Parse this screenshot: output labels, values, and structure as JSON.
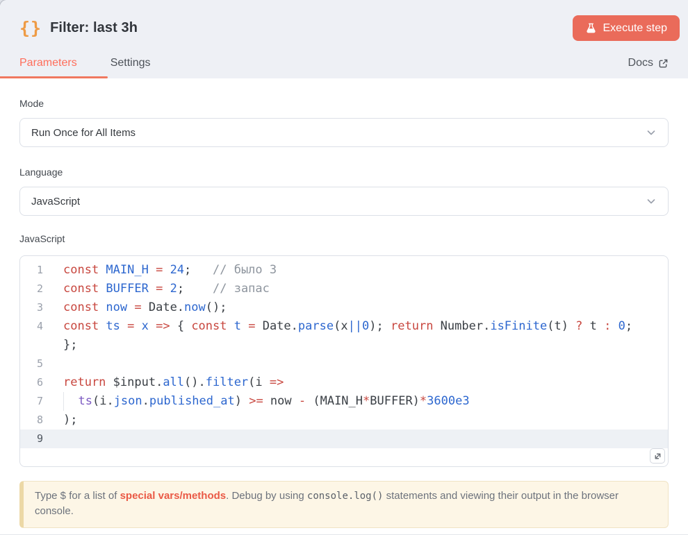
{
  "header": {
    "icon": "{}",
    "title": "Filter: last 3h",
    "execute_label": "Execute step"
  },
  "tabs": {
    "parameters": "Parameters",
    "settings": "Settings",
    "docs": "Docs"
  },
  "fields": {
    "mode": {
      "label": "Mode",
      "value": "Run Once for All Items"
    },
    "language": {
      "label": "Language",
      "value": "JavaScript"
    },
    "code_label": "JavaScript"
  },
  "colors": {
    "primary": "#ff6d5a",
    "execute_button": "#ea6b5a",
    "node_icon": "#ee9b45",
    "header_bg": "#eef0f5",
    "active_line_bg": "#eef1f5",
    "hint_bg": "#fdf6e6",
    "hint_border": "#ecd8a6",
    "token_keyword": "#c8473f",
    "token_variable": "#2d67cf",
    "token_function_call": "#7c5ac2",
    "token_comment": "#8e959e",
    "token_plain": "#3a3f45"
  },
  "editor": {
    "lines": [
      {
        "n": "1",
        "tokens": [
          [
            "kw",
            "const "
          ],
          [
            "def",
            "MAIN_H "
          ],
          [
            "kw",
            "= "
          ],
          [
            "num",
            "24"
          ],
          [
            "pl",
            ";   "
          ],
          [
            "cm",
            "// было 3"
          ]
        ]
      },
      {
        "n": "2",
        "tokens": [
          [
            "kw",
            "const "
          ],
          [
            "def",
            "BUFFER "
          ],
          [
            "kw",
            "= "
          ],
          [
            "num",
            "2"
          ],
          [
            "pl",
            ";    "
          ],
          [
            "cm",
            "// запас"
          ]
        ]
      },
      {
        "n": "3",
        "tokens": [
          [
            "kw",
            "const "
          ],
          [
            "def",
            "now "
          ],
          [
            "kw",
            "= "
          ],
          [
            "pl",
            "Date."
          ],
          [
            "prop",
            "now"
          ],
          [
            "pl",
            "();"
          ]
        ]
      },
      {
        "n": "4",
        "tokens": [
          [
            "kw",
            "const "
          ],
          [
            "def",
            "ts "
          ],
          [
            "kw",
            "= "
          ],
          [
            "def",
            "x "
          ],
          [
            "kw",
            "=> "
          ],
          [
            "pl",
            "{ "
          ],
          [
            "kw",
            "const "
          ],
          [
            "def",
            "t "
          ],
          [
            "kw",
            "= "
          ],
          [
            "pl",
            "Date."
          ],
          [
            "prop",
            "parse"
          ],
          [
            "pl",
            "(x"
          ],
          [
            "num",
            "||"
          ],
          [
            "num",
            "0"
          ],
          [
            "pl",
            "); "
          ],
          [
            "kw",
            "return "
          ],
          [
            "pl",
            "Number."
          ],
          [
            "prop",
            "isFinite"
          ],
          [
            "pl",
            "(t) "
          ],
          [
            "kw",
            "? "
          ],
          [
            "pl",
            "t "
          ],
          [
            "kw",
            ": "
          ],
          [
            "num",
            "0"
          ],
          [
            "pl",
            ";"
          ]
        ]
      },
      {
        "n": "",
        "tokens": [
          [
            "pl",
            "};"
          ]
        ]
      },
      {
        "n": "5",
        "tokens": []
      },
      {
        "n": "6",
        "tokens": [
          [
            "kw",
            "return "
          ],
          [
            "pl",
            "$input."
          ],
          [
            "prop",
            "all"
          ],
          [
            "pl",
            "()."
          ],
          [
            "prop",
            "filter"
          ],
          [
            "pl",
            "(i "
          ],
          [
            "kw",
            "=>"
          ]
        ]
      },
      {
        "n": "7",
        "guide": true,
        "tokens": [
          [
            "pl",
            "  "
          ],
          [
            "pu",
            "ts"
          ],
          [
            "pl",
            "(i."
          ],
          [
            "prop",
            "json"
          ],
          [
            "pl",
            "."
          ],
          [
            "prop",
            "published_at"
          ],
          [
            "pl",
            ") "
          ],
          [
            "kw",
            ">= "
          ],
          [
            "pl",
            "now "
          ],
          [
            "kw",
            "- "
          ],
          [
            "pl",
            "(MAIN_H"
          ],
          [
            "kw",
            "*"
          ],
          [
            "pl",
            "BUFFER)"
          ],
          [
            "kw",
            "*"
          ],
          [
            "num",
            "3600e3"
          ]
        ]
      },
      {
        "n": "8",
        "tokens": [
          [
            "pl",
            ");"
          ]
        ]
      },
      {
        "n": "9",
        "active": true,
        "tokens": []
      }
    ]
  },
  "hint": {
    "segments": [
      {
        "t": "Type $ for a list of ",
        "s": "plain"
      },
      {
        "t": "special vars/methods",
        "s": "hl"
      },
      {
        "t": ". Debug by using ",
        "s": "plain"
      },
      {
        "t": "console.log()",
        "s": "mono"
      },
      {
        "t": " statements and viewing their output in the browser console.",
        "s": "plain"
      }
    ]
  }
}
